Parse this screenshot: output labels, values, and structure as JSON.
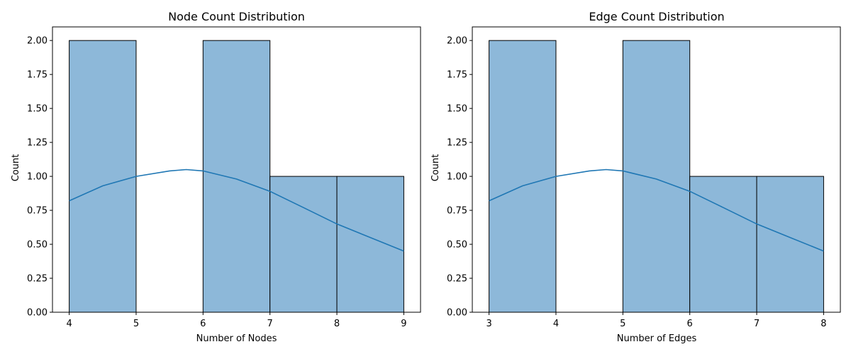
{
  "chart_data": [
    {
      "type": "bar",
      "title": "Node Count Distribution",
      "xlabel": "Number of Nodes",
      "ylabel": "Count",
      "bins": [
        [
          4,
          5
        ],
        [
          5,
          6
        ],
        [
          6,
          7
        ],
        [
          7,
          8
        ],
        [
          8,
          9
        ]
      ],
      "values": [
        2,
        0,
        2,
        1,
        1
      ],
      "xlim": [
        3.75,
        9.25
      ],
      "ylim": [
        0,
        2.1
      ],
      "xticks": [
        4,
        5,
        6,
        7,
        8,
        9
      ],
      "yticks": [
        "0.00",
        "0.25",
        "0.50",
        "0.75",
        "1.00",
        "1.25",
        "1.50",
        "1.75",
        "2.00"
      ],
      "kde": {
        "x": [
          4,
          4.5,
          5,
          5.5,
          5.75,
          6,
          6.5,
          7,
          7.5,
          8,
          8.5,
          9
        ],
        "y": [
          0.82,
          0.93,
          1.0,
          1.04,
          1.05,
          1.04,
          0.98,
          0.89,
          0.77,
          0.65,
          0.55,
          0.45
        ]
      },
      "bar_color": "#8db8d9",
      "line_color": "#1f77b4",
      "grid": false
    },
    {
      "type": "bar",
      "title": "Edge Count Distribution",
      "xlabel": "Number of Edges",
      "ylabel": "Count",
      "bins": [
        [
          3,
          4
        ],
        [
          4,
          5
        ],
        [
          5,
          6
        ],
        [
          6,
          7
        ],
        [
          7,
          8
        ]
      ],
      "values": [
        2,
        0,
        2,
        1,
        1
      ],
      "xlim": [
        2.75,
        8.25
      ],
      "ylim": [
        0,
        2.1
      ],
      "xticks": [
        3,
        4,
        5,
        6,
        7,
        8
      ],
      "yticks": [
        "0.00",
        "0.25",
        "0.50",
        "0.75",
        "1.00",
        "1.25",
        "1.50",
        "1.75",
        "2.00"
      ],
      "kde": {
        "x": [
          3,
          3.5,
          4,
          4.5,
          4.75,
          5,
          5.5,
          6,
          6.5,
          7,
          7.5,
          8
        ],
        "y": [
          0.82,
          0.93,
          1.0,
          1.04,
          1.05,
          1.04,
          0.98,
          0.89,
          0.77,
          0.65,
          0.55,
          0.45
        ]
      },
      "bar_color": "#8db8d9",
      "line_color": "#1f77b4",
      "grid": false
    }
  ]
}
